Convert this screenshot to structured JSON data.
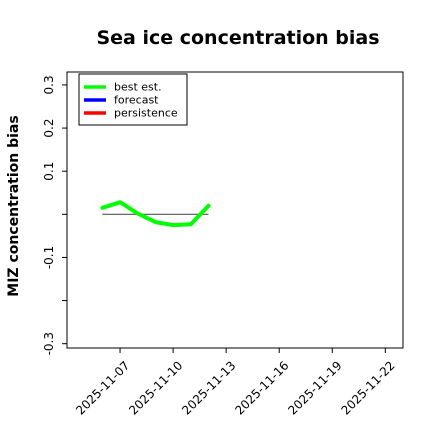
{
  "chart_data": {
    "type": "line",
    "title": "Sea ice concentration bias",
    "ylabel": "MIZ concentration bias",
    "xlabel": "",
    "x_ticks": [
      "2025-11-07",
      "2025-11-10",
      "2025-11-13",
      "2025-11-16",
      "2025-11-19",
      "2025-11-22"
    ],
    "highlighted_tick": "2025-11-13",
    "highlight_color": "#228B22",
    "x_range": [
      "2025-11-04",
      "2025-11-23"
    ],
    "y_ticks": [
      -0.3,
      -0.2,
      -0.1,
      0.0,
      0.1,
      0.2,
      0.3
    ],
    "y_tick_labels": [
      "-0.3",
      "",
      "-0.1",
      "",
      "0.1",
      "0.2",
      "0.3"
    ],
    "ylim": [
      -0.31,
      0.33
    ],
    "zero_line": {
      "x": [
        "2025-11-06",
        "2025-11-12"
      ],
      "y": 0.0,
      "color": "#555555"
    },
    "series": [
      {
        "name": "best est.",
        "color": "#00ff00",
        "x": [
          "2025-11-06",
          "2025-11-07",
          "2025-11-08",
          "2025-11-09",
          "2025-11-10",
          "2025-11-11",
          "2025-11-12"
        ],
        "y": [
          0.015,
          0.028,
          0.002,
          -0.018,
          -0.025,
          -0.023,
          0.02
        ]
      },
      {
        "name": "forecast",
        "color": "#0000ff",
        "x": [],
        "y": []
      },
      {
        "name": "persistence",
        "color": "#ff0000",
        "x": [],
        "y": []
      }
    ],
    "legend_position": "top-left",
    "grid": false
  }
}
